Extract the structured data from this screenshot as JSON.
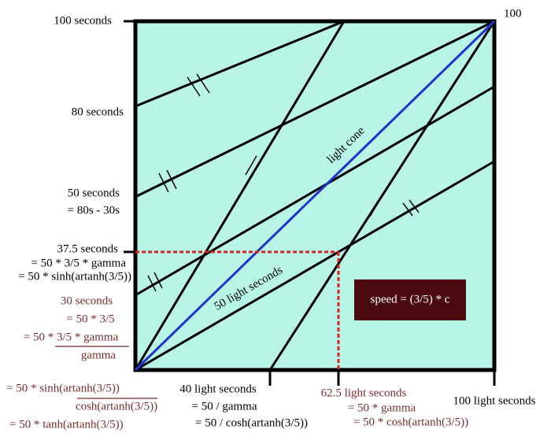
{
  "corner_label": "100",
  "y_labels": [
    {
      "lines": [
        "100 seconds"
      ]
    },
    {
      "lines": [
        "80 seconds"
      ]
    },
    {
      "lines": [
        "50 seconds",
        "= 80s - 30s"
      ]
    },
    {
      "lines": [
        "37.5 seconds",
        "= 50 * 3/5 * gamma",
        "= 50 * sinh(artanh(3/5))"
      ]
    }
  ],
  "derivation": [
    "30 seconds",
    "= 50 * 3/5",
    "= 50 * 3/5 * gamma",
    "gamma",
    "= 50 * sinh(artanh(3/5))",
    "cosh(artanh(3/5))",
    "= 50 * tanh(artanh(3/5))"
  ],
  "x_labels": [
    {
      "lines": [
        "40 light seconds",
        "= 50 / gamma",
        "= 50 / cosh(artanh(3/5))"
      ]
    },
    {
      "lines": [
        "62.5 light seconds",
        "= 50 * gamma",
        "= 50 * cosh(artanh(3/5))"
      ]
    },
    {
      "lines": [
        "100 light seconds"
      ]
    }
  ],
  "annotations": {
    "light_cone": "light cone",
    "fifty": "50 light seconds"
  },
  "speed_box": "speed = (3/5) * c"
}
